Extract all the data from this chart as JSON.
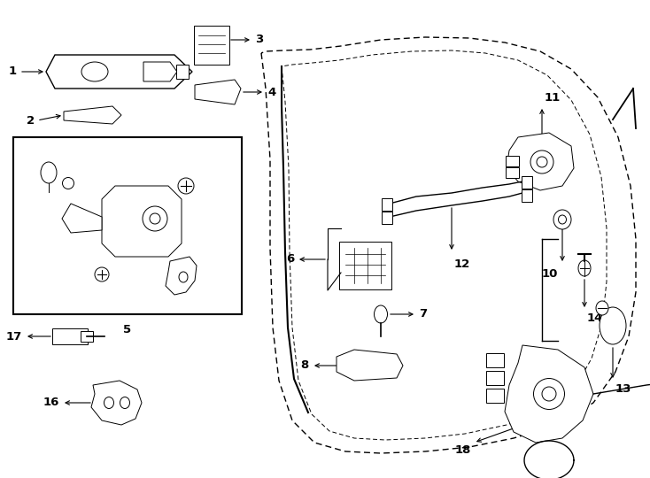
{
  "bg_color": "#ffffff",
  "lc": "#000000",
  "lw_main": 1.0,
  "lw_thin": 0.7,
  "figw": 7.34,
  "figh": 5.4,
  "dpi": 100
}
